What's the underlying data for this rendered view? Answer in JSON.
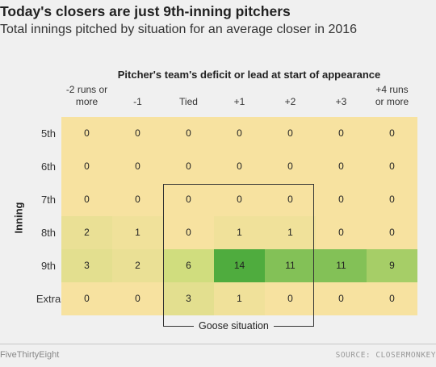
{
  "header": {
    "title": "Today's closers are just 9th-inning pitchers",
    "subtitle": "Total innings pitched by situation for an average closer in 2016"
  },
  "chart_data": {
    "type": "heatmap",
    "title": "Today's closers are just 9th-inning pitchers",
    "subtitle": "Total innings pitched by situation for an average closer in 2016",
    "xlabel": "Pitcher's team's deficit or lead at start of appearance",
    "ylabel": "Inning",
    "columns": [
      "-2 runs or more",
      "-1",
      "Tied",
      "+1",
      "+2",
      "+3",
      "+4 runs or more"
    ],
    "rows": [
      "5th",
      "6th",
      "7th",
      "8th",
      "9th",
      "Extra"
    ],
    "values": [
      [
        0,
        0,
        0,
        0,
        0,
        0,
        0
      ],
      [
        0,
        0,
        0,
        0,
        0,
        0,
        0
      ],
      [
        0,
        0,
        0,
        0,
        0,
        0,
        0
      ],
      [
        2,
        1,
        0,
        1,
        1,
        0,
        0
      ],
      [
        3,
        2,
        6,
        14,
        11,
        11,
        9
      ],
      [
        0,
        0,
        3,
        1,
        0,
        0,
        0
      ]
    ],
    "color_scale": {
      "low": "#f7e2a0",
      "high": "#4fac3e",
      "max": 14
    },
    "annotation": "Goose situation"
  },
  "footer": {
    "brand": "FiveThirtyEight",
    "source": "SOURCE: CLOSERMONKEY"
  }
}
